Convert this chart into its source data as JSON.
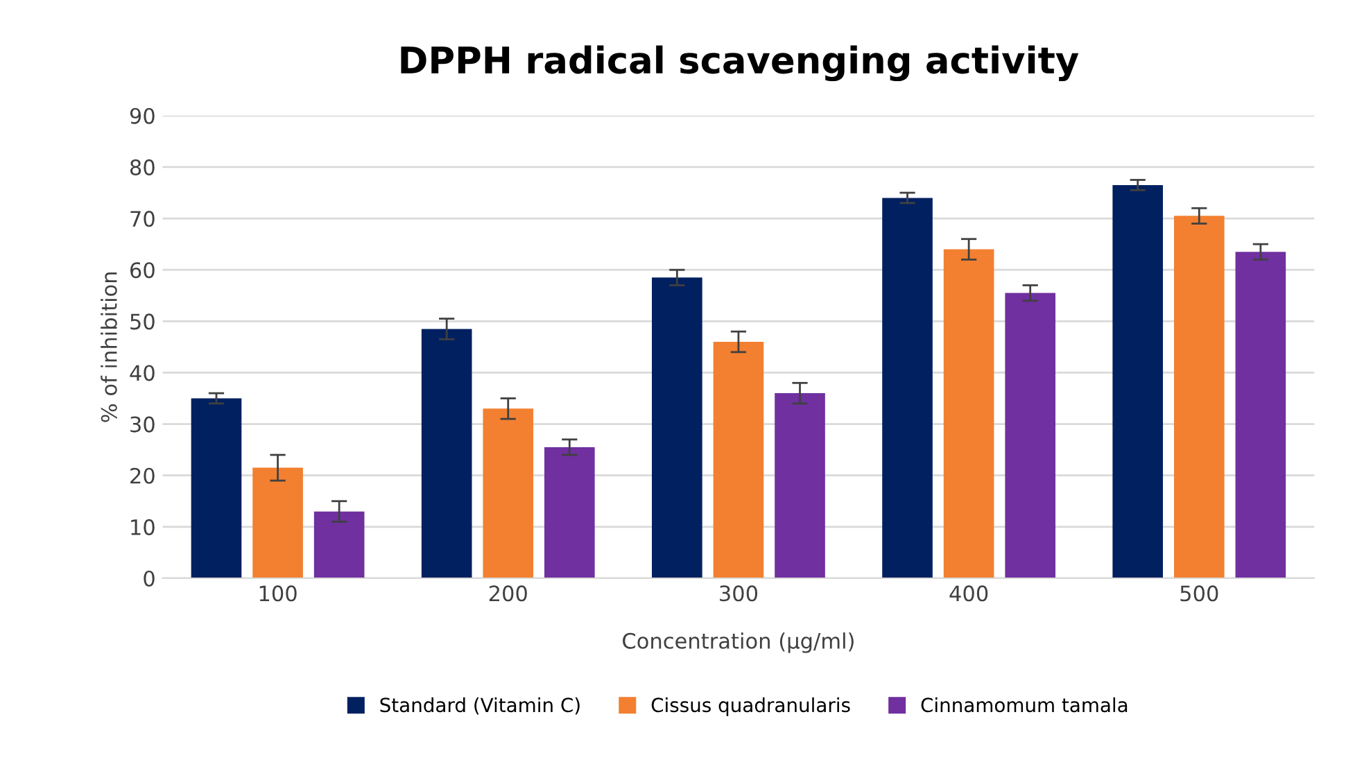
{
  "chart_data": {
    "type": "bar",
    "title": "DPPH radical scavenging activity",
    "xlabel": "Concentration (µg/ml)",
    "ylabel": "% of inhibition",
    "categories": [
      "100",
      "200",
      "300",
      "400",
      "500"
    ],
    "series": [
      {
        "name": "Standard (Vitamin C)",
        "color": "#002060",
        "values": [
          35,
          48.5,
          58.5,
          74,
          76.5
        ],
        "errors": [
          1,
          2,
          1.5,
          1,
          1
        ]
      },
      {
        "name": "Cissus quadranularis",
        "color": "#f28030",
        "values": [
          21.5,
          33,
          46,
          64,
          70.5
        ],
        "errors": [
          2.5,
          2,
          2,
          2,
          1.5
        ]
      },
      {
        "name": "Cinnamomum tamala",
        "color": "#7030a0",
        "values": [
          13,
          25.5,
          36,
          55.5,
          63.5
        ],
        "errors": [
          2,
          1.5,
          2,
          1.5,
          1.5
        ]
      }
    ],
    "ylim": [
      0,
      90
    ],
    "yticks": [
      0,
      10,
      20,
      30,
      40,
      50,
      60,
      70,
      80,
      90
    ],
    "grid": "y",
    "legend": "bottom"
  }
}
